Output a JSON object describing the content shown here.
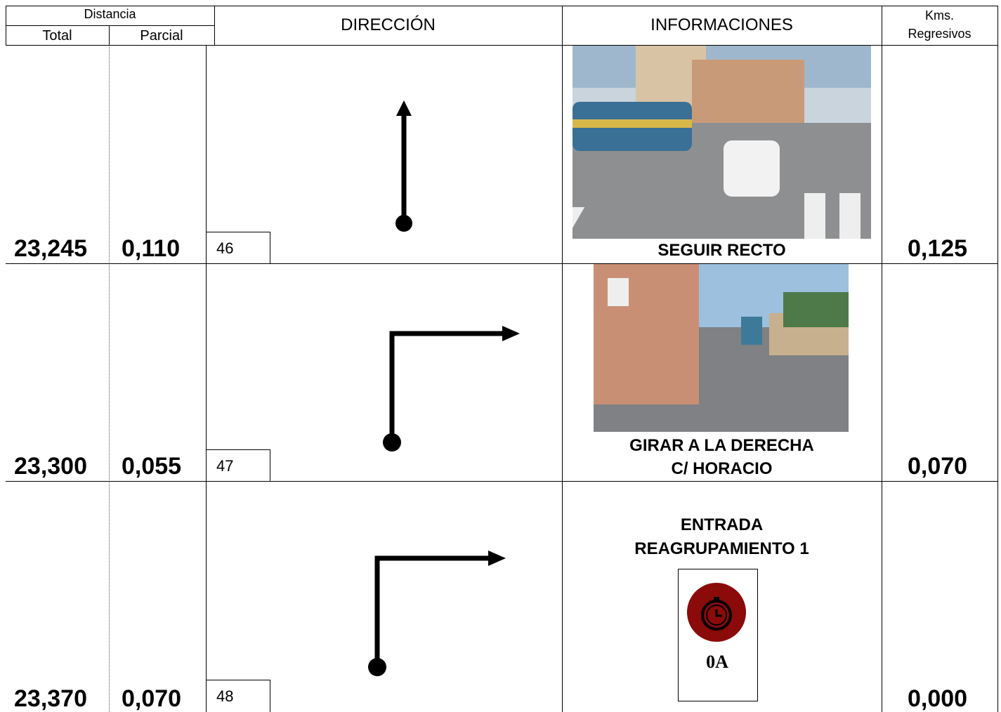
{
  "header": {
    "distancia": "Distancia",
    "total": "Total",
    "parcial": "Parcial",
    "direccion": "DIRECCIÓN",
    "informaciones": "INFORMACIONES",
    "kms": [
      "Kms.",
      "Regresivos"
    ]
  },
  "rows": [
    {
      "total": "23,245",
      "parcial": "0,110",
      "number": "46",
      "info": [
        "SEGUIR RECTO"
      ],
      "kms": "0,125"
    },
    {
      "total": "23,300",
      "parcial": "0,055",
      "number": "47",
      "info": [
        "GIRAR A LA DERECHA",
        "C/ HORACIO"
      ],
      "kms": "0,070"
    },
    {
      "total": "23,370",
      "parcial": "0,070",
      "number": "48",
      "info": [
        "ENTRADA",
        "REAGRUPAMIENTO 1"
      ],
      "badge": "0A",
      "kms": "0,000"
    }
  ]
}
